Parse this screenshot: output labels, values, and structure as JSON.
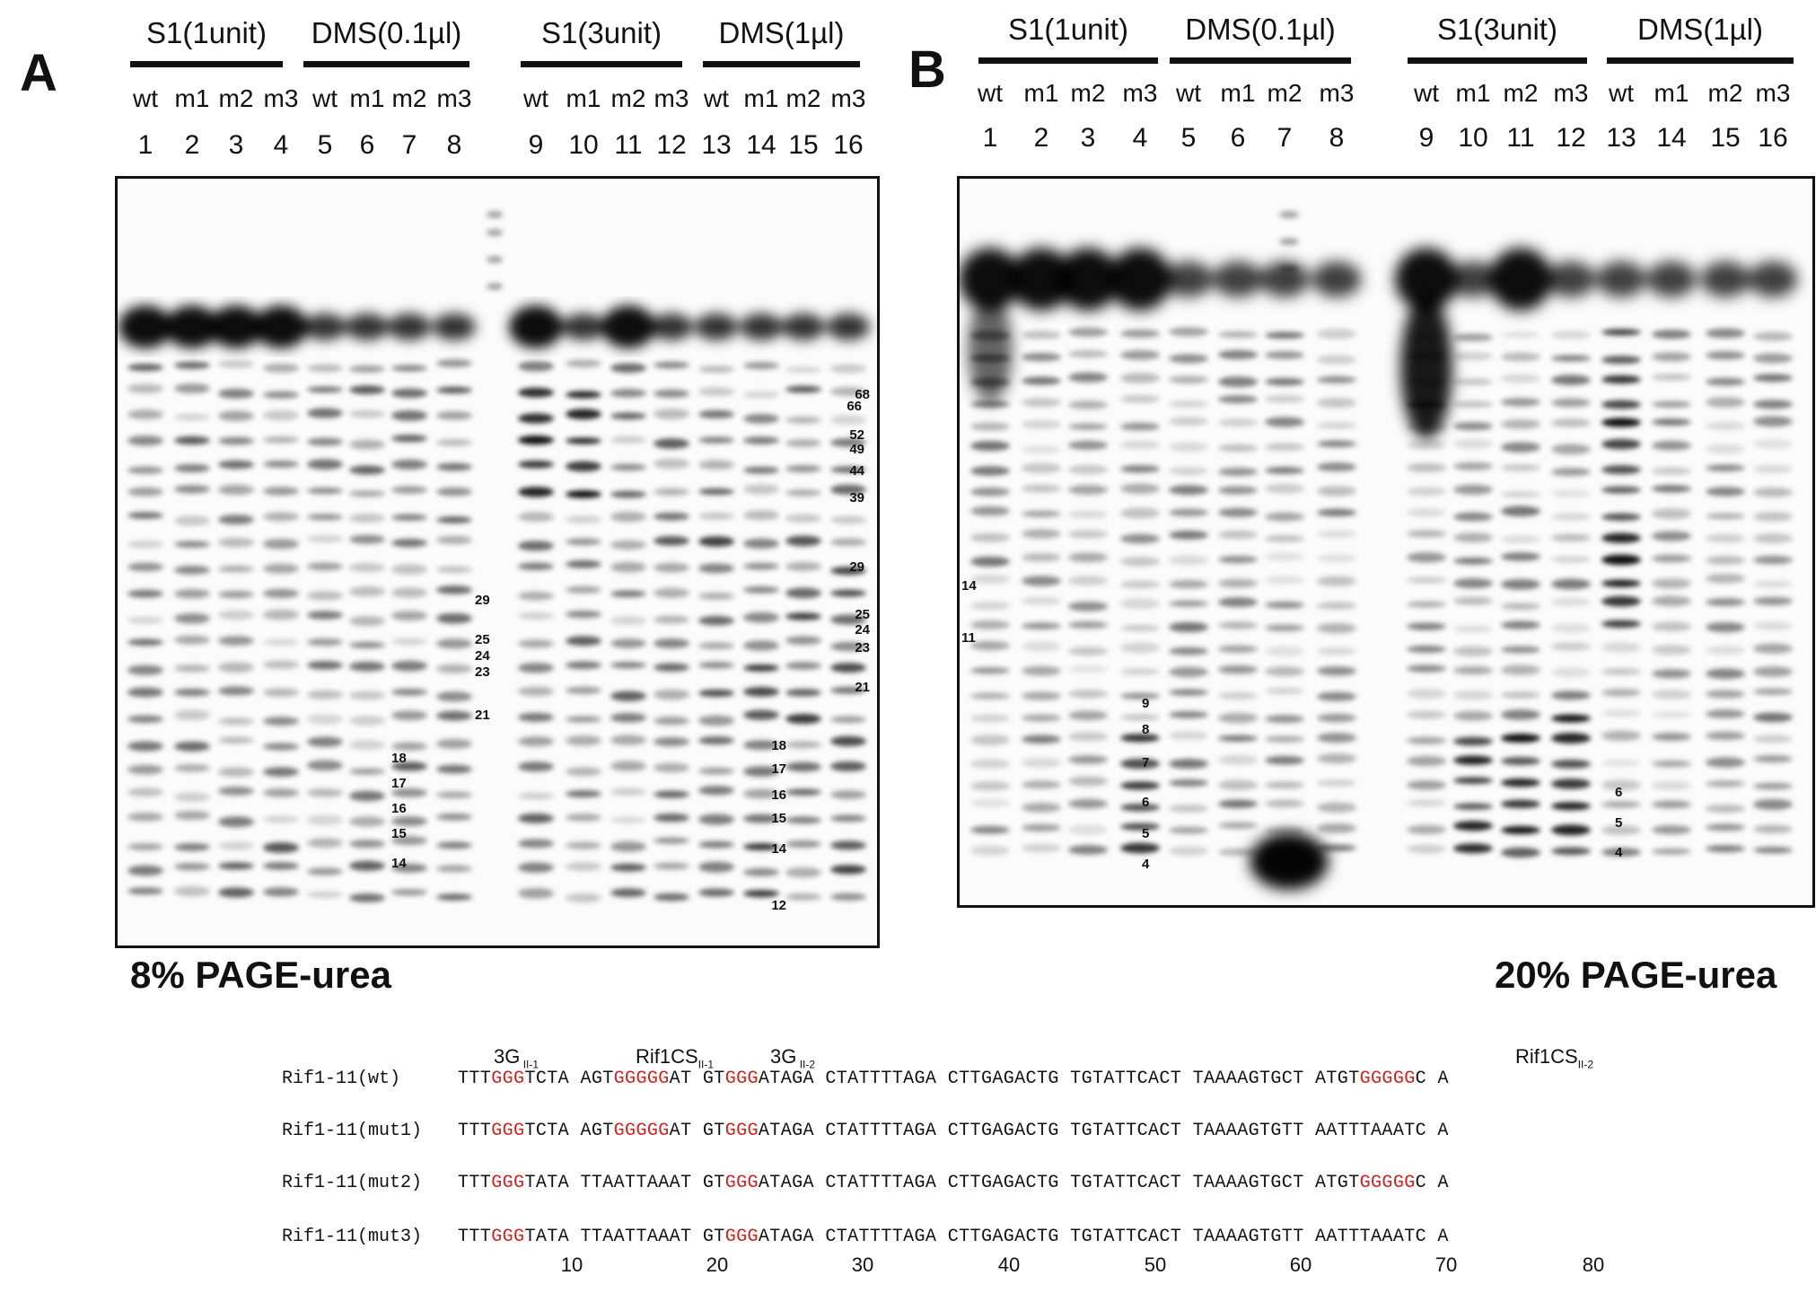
{
  "panels": [
    {
      "letter": "A",
      "caption": "8% PAGE-urea",
      "groups": [
        {
          "label": "S1(1unit)",
          "lanes": [
            "wt",
            "m1",
            "m2",
            "m3"
          ],
          "nums": [
            "1",
            "2",
            "3",
            "4"
          ]
        },
        {
          "label": "DMS(0.1µl)",
          "lanes": [
            "wt",
            "m1",
            "m2",
            "m3"
          ],
          "nums": [
            "5",
            "6",
            "7",
            "8"
          ]
        },
        {
          "label": "S1(3unit)",
          "lanes": [
            "wt",
            "m1",
            "m2",
            "m3"
          ],
          "nums": [
            "9",
            "10",
            "11",
            "12"
          ]
        },
        {
          "label": "DMS(1µl)",
          "lanes": [
            "wt",
            "m1",
            "m2",
            "m3"
          ],
          "nums": [
            "13",
            "14",
            "15",
            "16"
          ]
        }
      ],
      "markers_mid": [
        "29",
        "25",
        "24",
        "23",
        "21",
        "18",
        "17",
        "16",
        "15",
        "14"
      ],
      "markers_right": [
        "68",
        "66",
        "52",
        "49",
        "44",
        "39",
        "29",
        "25",
        "24",
        "23",
        "21",
        "18",
        "17",
        "16",
        "15",
        "14",
        "12"
      ]
    },
    {
      "letter": "B",
      "caption": "20% PAGE-urea",
      "groups": [
        {
          "label": "S1(1unit)",
          "lanes": [
            "wt",
            "m1",
            "m2",
            "m3"
          ],
          "nums": [
            "1",
            "2",
            "3",
            "4"
          ]
        },
        {
          "label": "DMS(0.1µl)",
          "lanes": [
            "wt",
            "m1",
            "m2",
            "m3"
          ],
          "nums": [
            "5",
            "6",
            "7",
            "8"
          ]
        },
        {
          "label": "S1(3unit)",
          "lanes": [
            "wt",
            "m1",
            "m2",
            "m3"
          ],
          "nums": [
            "9",
            "10",
            "11",
            "12"
          ]
        },
        {
          "label": "DMS(1µl)",
          "lanes": [
            "wt",
            "m1",
            "m2",
            "m3"
          ],
          "nums": [
            "13",
            "14",
            "15",
            "16"
          ]
        }
      ],
      "markers_left": [
        "14",
        "11"
      ],
      "markers_mid": [
        "9",
        "8",
        "7",
        "6",
        "5",
        "4"
      ],
      "markers_right": [
        "6",
        "5",
        "4"
      ]
    }
  ],
  "motif_labels": {
    "g1": {
      "main": "3G",
      "sub": "II-1"
    },
    "rif1": {
      "main": "Rif1CS",
      "sub": "II-1"
    },
    "g2": {
      "main": "3G",
      "sub": "II-2"
    },
    "rif2": {
      "main": "Rif1CS",
      "sub": "II-2"
    }
  },
  "sequences": [
    {
      "name": "Rif1-11(wt)",
      "parts": [
        "TTT",
        "GGG",
        "TCTA AGT",
        "GGGGG",
        "AT GT",
        "GGG",
        "ATAGA CTATTTTAGA CTTGAGACTG TGTATTCACT TAAAAGTGCT ATGT",
        "GGGGG",
        "C A"
      ]
    },
    {
      "name": "Rif1-11(mut1)",
      "parts": [
        "TTT",
        "GGG",
        "TCTA AGT",
        "GGGGG",
        "AT GT",
        "GGG",
        "ATAGA CTATTTTAGA CTTGAGACTG TGTATTCACT TAAAAGTGTT AATTTAAATC A",
        "",
        ""
      ]
    },
    {
      "name": "Rif1-11(mut2)",
      "parts": [
        "TTT",
        "GGG",
        "TATA TTAATTAAAT GT",
        "",
        "",
        "GGG",
        "ATAGA CTATTTTAGA CTTGAGACTG TGTATTCACT TAAAAGTGCT ATGT",
        "GGGGG",
        "C A"
      ]
    },
    {
      "name": "Rif1-11(mut3)",
      "parts": [
        "TTT",
        "GGG",
        "TATA TTAATTAAAT GT",
        "",
        "",
        "GGG",
        "ATAGA CTATTTTAGA CTTGAGACTG TGTATTCACT TAAAAGTGTT AATTTAAATC A",
        "",
        ""
      ]
    }
  ],
  "positions": [
    "10",
    "20",
    "30",
    "40",
    "50",
    "60",
    "70",
    "80"
  ],
  "colors": {
    "highlight": "#d42020",
    "text": "#111111"
  }
}
